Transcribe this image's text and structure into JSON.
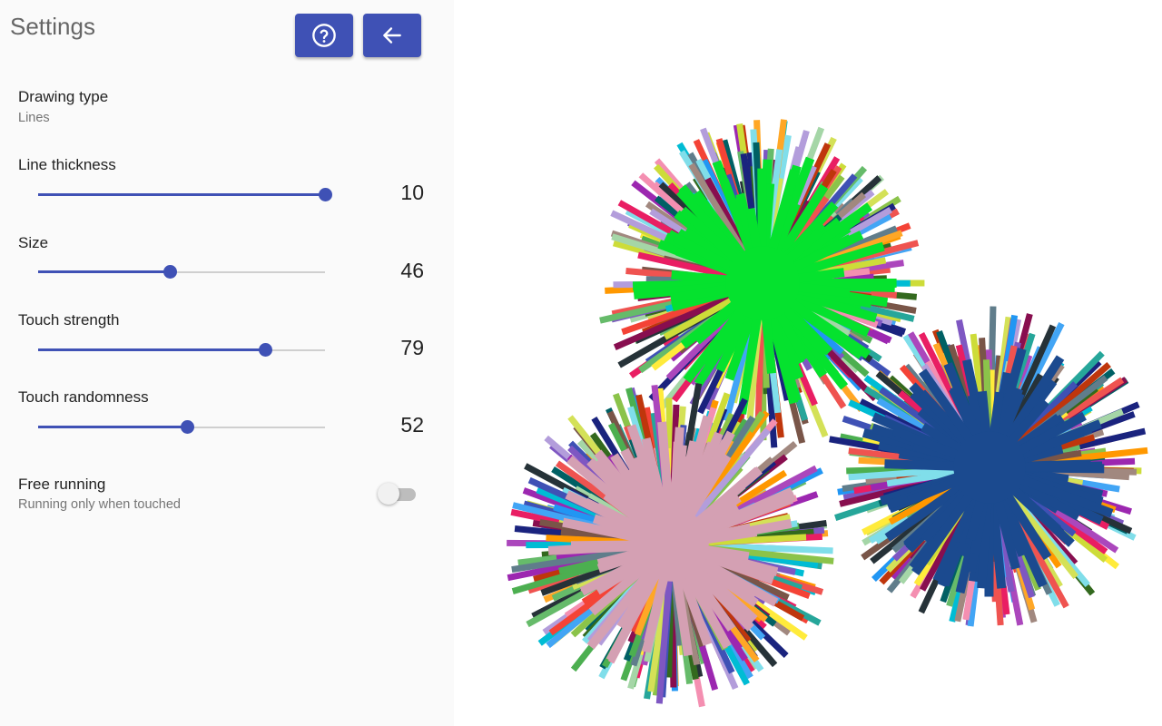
{
  "header": {
    "title": "Settings",
    "help_icon": "help-circle-icon",
    "back_icon": "arrow-left-icon",
    "button_color": "#3f51b5"
  },
  "drawing_type": {
    "title": "Drawing type",
    "value": "Lines"
  },
  "sliders": [
    {
      "label": "Line thickness",
      "value": "10",
      "fraction": 1.0
    },
    {
      "label": "Size",
      "value": "46",
      "fraction": 0.46
    },
    {
      "label": "Touch strength",
      "value": "79",
      "fraction": 0.79
    },
    {
      "label": "Touch randomness",
      "value": "52",
      "fraction": 0.52
    }
  ],
  "free_running": {
    "title": "Free running",
    "summary": "Running only when touched",
    "checked": false
  },
  "artwork": {
    "bursts": [
      {
        "center_color": "#05e22e"
      },
      {
        "center_color": "#d4a0b3"
      },
      {
        "center_color": "#1b4a8f"
      }
    ]
  }
}
